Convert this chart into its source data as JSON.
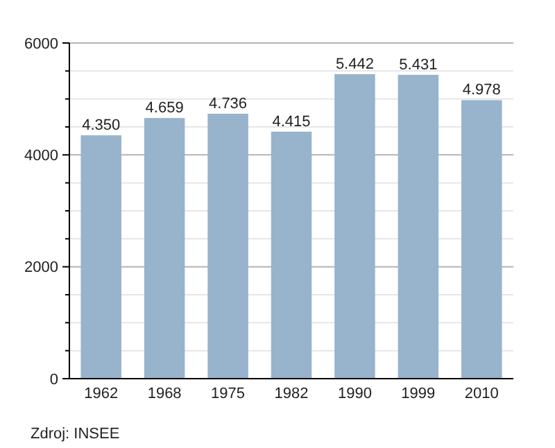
{
  "chart_data": {
    "type": "bar",
    "categories": [
      "1962",
      "1968",
      "1975",
      "1982",
      "1990",
      "1999",
      "2010"
    ],
    "values": [
      4350,
      4659,
      4736,
      4415,
      5442,
      5431,
      4978
    ],
    "value_labels": [
      "4.350",
      "4.659",
      "4.736",
      "4.415",
      "5.442",
      "5.431",
      "4.978"
    ],
    "color": "#98b3cc",
    "ylim": [
      0,
      6000
    ],
    "yticks": [
      0,
      {
        "value": 500,
        "label": null
      },
      {
        "value": 1000,
        "label": null
      },
      {
        "value": 1500,
        "label": null
      },
      2000,
      {
        "value": 2500,
        "label": null
      },
      {
        "value": 3000,
        "label": null
      },
      {
        "value": 3500,
        "label": null
      },
      4000,
      {
        "value": 4500,
        "label": null
      },
      {
        "value": 5000,
        "label": null
      },
      {
        "value": 5500,
        "label": null
      },
      6000
    ],
    "grid": "y",
    "annotations": [
      "Zdroj: INSEE"
    ]
  }
}
